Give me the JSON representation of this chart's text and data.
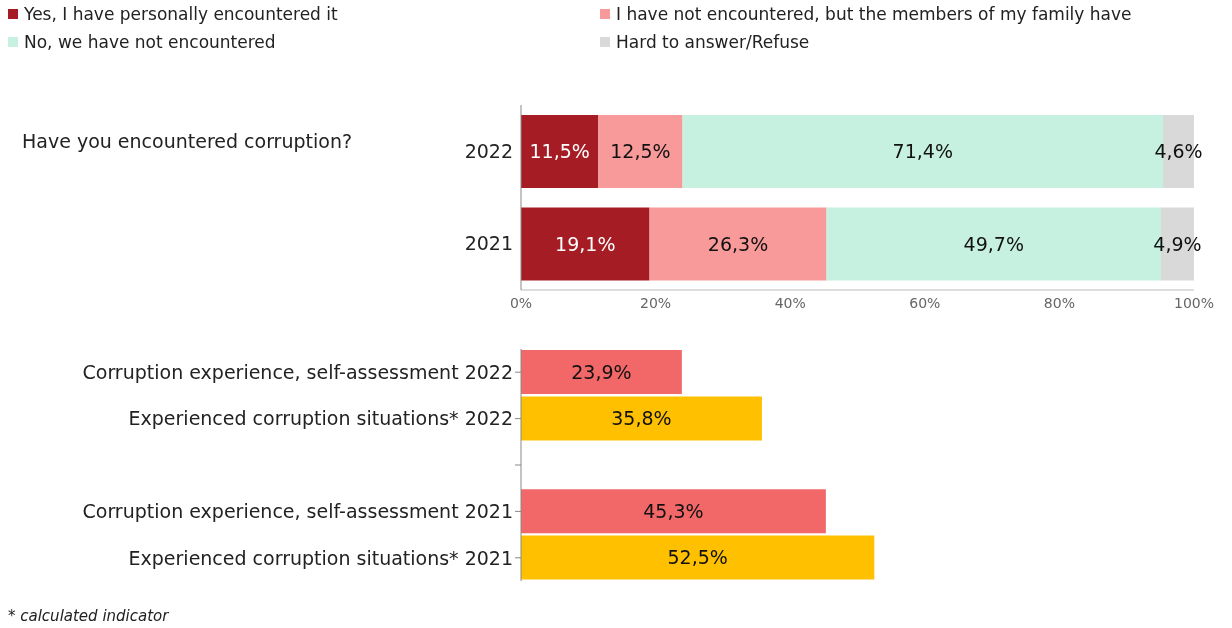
{
  "chart_data": [
    {
      "type": "bar",
      "orientation": "horizontal",
      "stacked": true,
      "ylabel": "Have you encountered corruption?",
      "categories": [
        "2022",
        "2021"
      ],
      "legend": "top left",
      "series": [
        {
          "name": "Yes, I have personally encountered it",
          "color": "#a51c24",
          "values": [
            11.5,
            19.1
          ],
          "value_labels": [
            "11,5%",
            "19,1%"
          ]
        },
        {
          "name": "I have not encountered, but the members of my family have",
          "color": "#f99a9a",
          "values": [
            12.5,
            26.3
          ],
          "value_labels": [
            "12,5%",
            "26,3%"
          ]
        },
        {
          "name": "No, we have not encountered",
          "color": "#c6f1e1",
          "values": [
            71.4,
            49.7
          ],
          "value_labels": [
            "71,4%",
            "49,7%"
          ]
        },
        {
          "name": "Hard to answer/Refuse",
          "color": "#d9d9d9",
          "values": [
            4.6,
            4.9
          ],
          "value_labels": [
            "4,6%",
            "4,9%"
          ]
        }
      ],
      "xlim": [
        0,
        100
      ],
      "xticks": [
        {
          "value": 0,
          "label": "0%"
        },
        {
          "value": 20,
          "label": "20%"
        },
        {
          "value": 40,
          "label": "40%"
        },
        {
          "value": 60,
          "label": "60%"
        },
        {
          "value": 80,
          "label": "80%"
        },
        {
          "value": 100,
          "label": "100%"
        }
      ]
    },
    {
      "type": "bar",
      "orientation": "horizontal",
      "categories": [
        "Corruption experience, self-assessment 2022",
        "Experienced corruption situations* 2022",
        null,
        "Corruption experience, self-assessment 2021",
        "Experienced corruption situations* 2021"
      ],
      "values": [
        23.9,
        35.8,
        null,
        45.3,
        52.5
      ],
      "value_labels": [
        "23,9%",
        "35,8%",
        null,
        "45,3%",
        "52,5%"
      ],
      "colors": [
        "#f26868",
        "#ffc000",
        "#ffffff",
        "#f26868",
        "#ffc000"
      ],
      "xlim": [
        0,
        100
      ],
      "tick_labels": "y",
      "annotations": [
        "* calculated indicator"
      ]
    }
  ]
}
